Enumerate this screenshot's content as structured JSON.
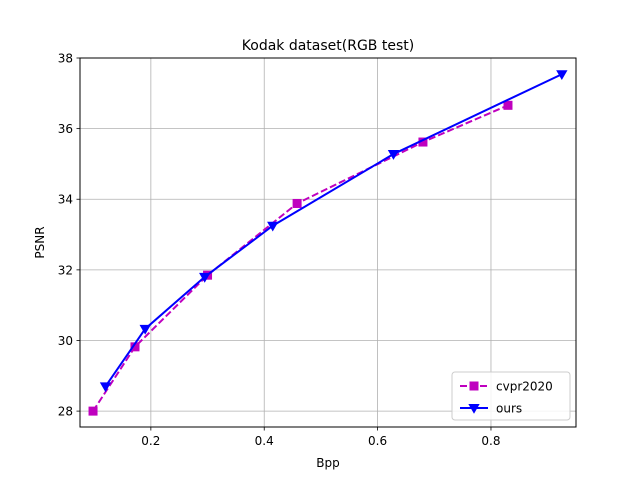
{
  "chart_data": {
    "type": "line",
    "title": "Kodak dataset(RGB test)",
    "xlabel": "Bpp",
    "ylabel": "PSNR",
    "xlim": [
      0.075,
      0.95
    ],
    "ylim": [
      27.55,
      38.0
    ],
    "xticks": [
      0.2,
      0.4,
      0.6,
      0.8
    ],
    "xtick_labels": [
      "0.2",
      "0.4",
      "0.6",
      "0.8"
    ],
    "yticks": [
      28,
      30,
      32,
      34,
      36,
      38
    ],
    "ytick_labels": [
      "28",
      "30",
      "32",
      "34",
      "36",
      "38"
    ],
    "grid": true,
    "legend_position": "lower-right",
    "series": [
      {
        "name": "cvpr2020",
        "color": "#bf00bf",
        "line_style": "dashed",
        "marker": "square",
        "x": [
          0.098,
          0.172,
          0.3,
          0.458,
          0.68,
          0.83
        ],
        "y": [
          28.0,
          29.82,
          31.85,
          33.88,
          35.62,
          36.66
        ]
      },
      {
        "name": "ours",
        "color": "#0000ff",
        "line_style": "solid",
        "marker": "triangle-down",
        "x": [
          0.12,
          0.19,
          0.295,
          0.415,
          0.628,
          0.925
        ],
        "y": [
          28.7,
          30.33,
          31.8,
          33.25,
          35.28,
          37.54
        ]
      }
    ]
  }
}
